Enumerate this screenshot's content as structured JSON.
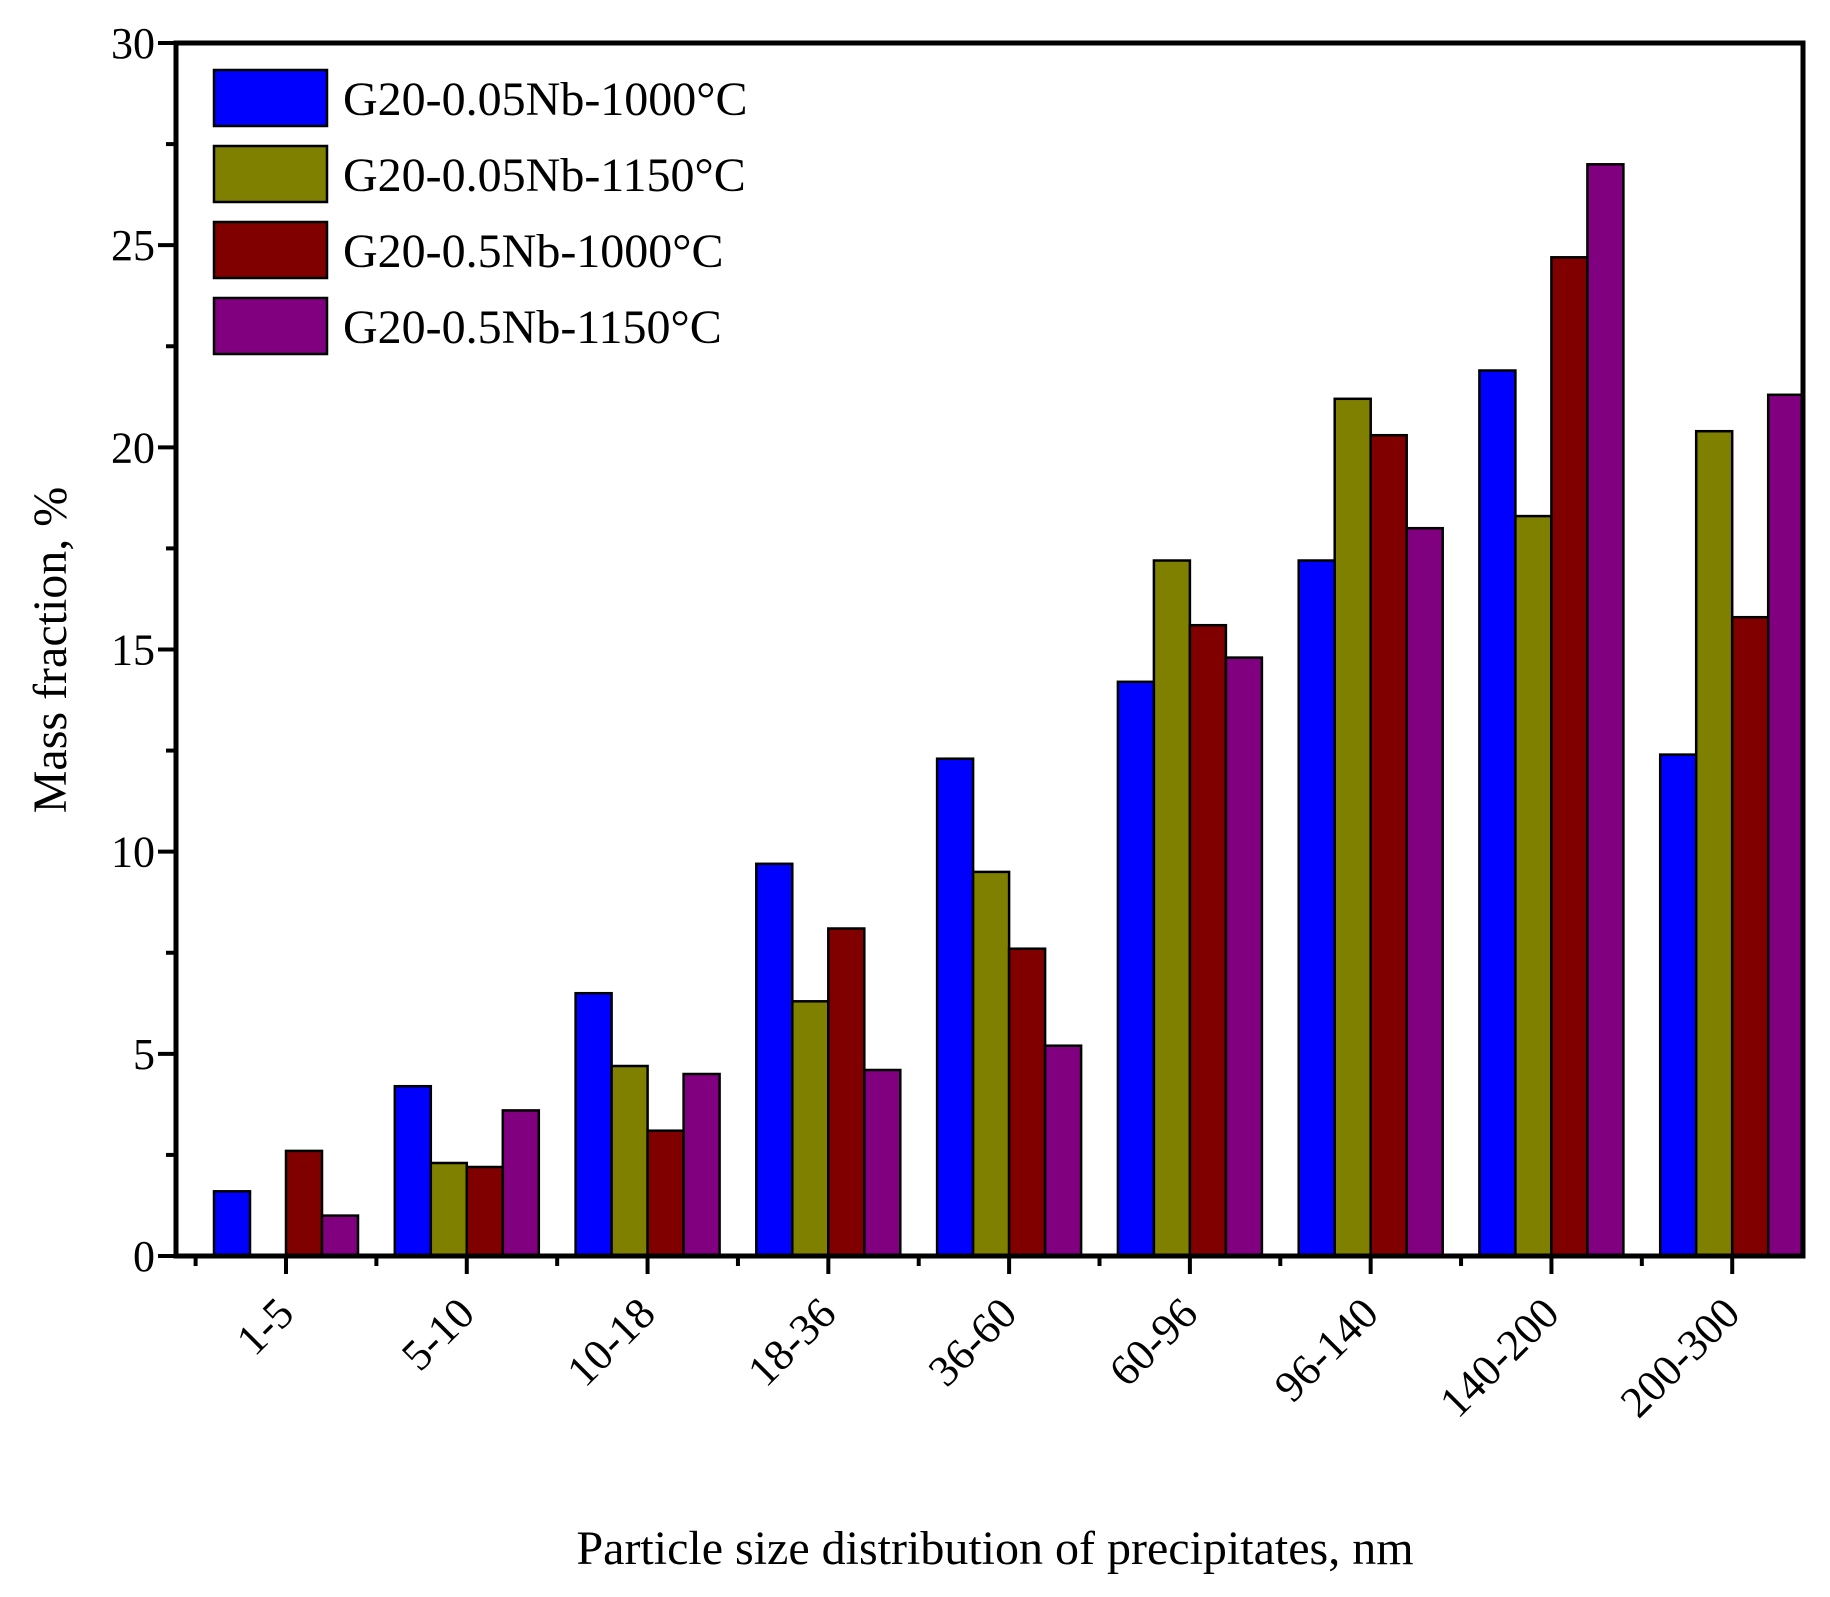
{
  "chart_data": {
    "type": "bar",
    "title": "",
    "xlabel": "Particle size distribution of precipitates, nm",
    "ylabel": "Mass fraction,  %",
    "ylim": [
      0,
      30
    ],
    "yticks": [
      0,
      5,
      10,
      15,
      20,
      25,
      30
    ],
    "grid": false,
    "legend_position": "top-left",
    "categories": [
      "1-5",
      "5-10",
      "10-18",
      "18-36",
      "36-60",
      "60-96",
      "96-140",
      "140-200",
      "200-300"
    ],
    "series": [
      {
        "name": "G20-0.05Nb-1000°C",
        "color": "#0000ff",
        "values": [
          1.6,
          4.2,
          6.5,
          9.7,
          12.3,
          14.2,
          17.2,
          21.9,
          12.4
        ]
      },
      {
        "name": "G20-0.05Nb-1150°C",
        "color": "#808000",
        "values": [
          0.0,
          2.3,
          4.7,
          6.3,
          9.5,
          17.2,
          21.2,
          18.3,
          20.4
        ]
      },
      {
        "name": "G20-0.5Nb-1000°C",
        "color": "#800000",
        "values": [
          2.6,
          2.2,
          3.1,
          8.1,
          7.6,
          15.6,
          20.3,
          24.7,
          15.8
        ]
      },
      {
        "name": "G20-0.5Nb-1150°C",
        "color": "#800080",
        "values": [
          1.0,
          3.6,
          4.5,
          4.6,
          5.2,
          14.8,
          18.0,
          27.0,
          21.3
        ]
      }
    ]
  }
}
